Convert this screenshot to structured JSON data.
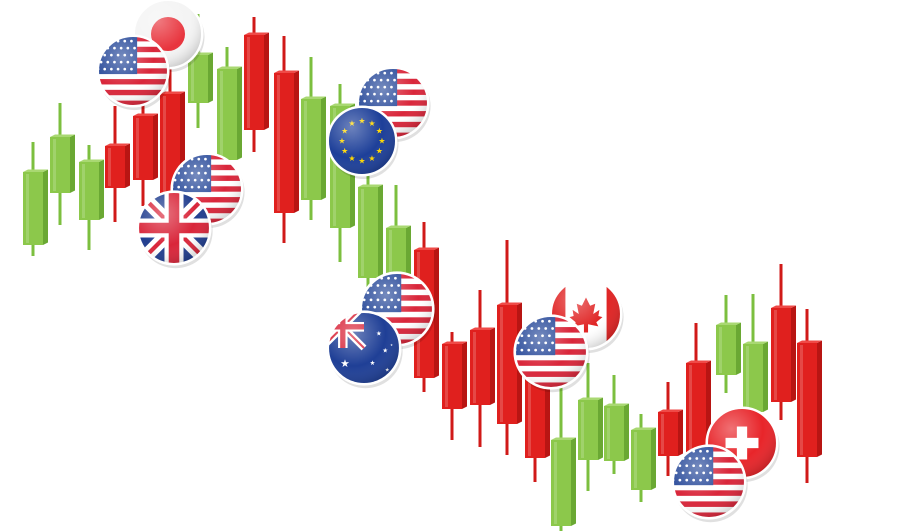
{
  "colors": {
    "bull_body": "#8cc84b",
    "bull_dark": "#6aa833",
    "bull_wick": "#7cbf3f",
    "bear_body": "#e0201e",
    "bear_dark": "#b81513",
    "bear_wick": "#d01a18",
    "flag_us_red": "#d9263a",
    "flag_us_blue": "#2b4c9b",
    "flag_eu_blue": "#1d3f99",
    "flag_eu_star": "#ffd700",
    "flag_jp_red": "#e8343d",
    "flag_uk_blue": "#213e8f",
    "flag_uk_red": "#d9263a",
    "flag_ca_red": "#e02424",
    "flag_ch_red": "#e8252a",
    "flag_au_blue": "#1f3f96"
  },
  "candles": [
    {
      "dir": "up"
    },
    {
      "dir": "up"
    },
    {
      "dir": "up"
    },
    {
      "dir": "down"
    },
    {
      "dir": "down"
    },
    {
      "dir": "down"
    },
    {
      "dir": "up"
    },
    {
      "dir": "up"
    },
    {
      "dir": "down"
    },
    {
      "dir": "down"
    },
    {
      "dir": "up"
    },
    {
      "dir": "up"
    },
    {
      "dir": "up"
    },
    {
      "dir": "up"
    },
    {
      "dir": "down"
    },
    {
      "dir": "down"
    },
    {
      "dir": "down"
    },
    {
      "dir": "down"
    },
    {
      "dir": "down"
    },
    {
      "dir": "up"
    },
    {
      "dir": "up"
    },
    {
      "dir": "up"
    },
    {
      "dir": "up"
    },
    {
      "dir": "down"
    },
    {
      "dir": "down"
    },
    {
      "dir": "up"
    },
    {
      "dir": "up"
    },
    {
      "dir": "down"
    },
    {
      "dir": "down"
    }
  ],
  "flags": [
    {
      "name": "japan-flag-icon",
      "kind": "jp"
    },
    {
      "name": "usa-flag-icon",
      "kind": "us"
    },
    {
      "name": "usa-flag-icon",
      "kind": "us"
    },
    {
      "name": "uk-flag-icon",
      "kind": "uk"
    },
    {
      "name": "usa-flag-icon",
      "kind": "us"
    },
    {
      "name": "eu-flag-icon",
      "kind": "eu"
    },
    {
      "name": "usa-flag-icon",
      "kind": "us"
    },
    {
      "name": "australia-flag-icon",
      "kind": "au"
    },
    {
      "name": "canada-flag-icon",
      "kind": "ca"
    },
    {
      "name": "usa-flag-icon",
      "kind": "us"
    },
    {
      "name": "switzerland-flag-icon",
      "kind": "ch"
    },
    {
      "name": "usa-flag-icon",
      "kind": "us"
    }
  ]
}
